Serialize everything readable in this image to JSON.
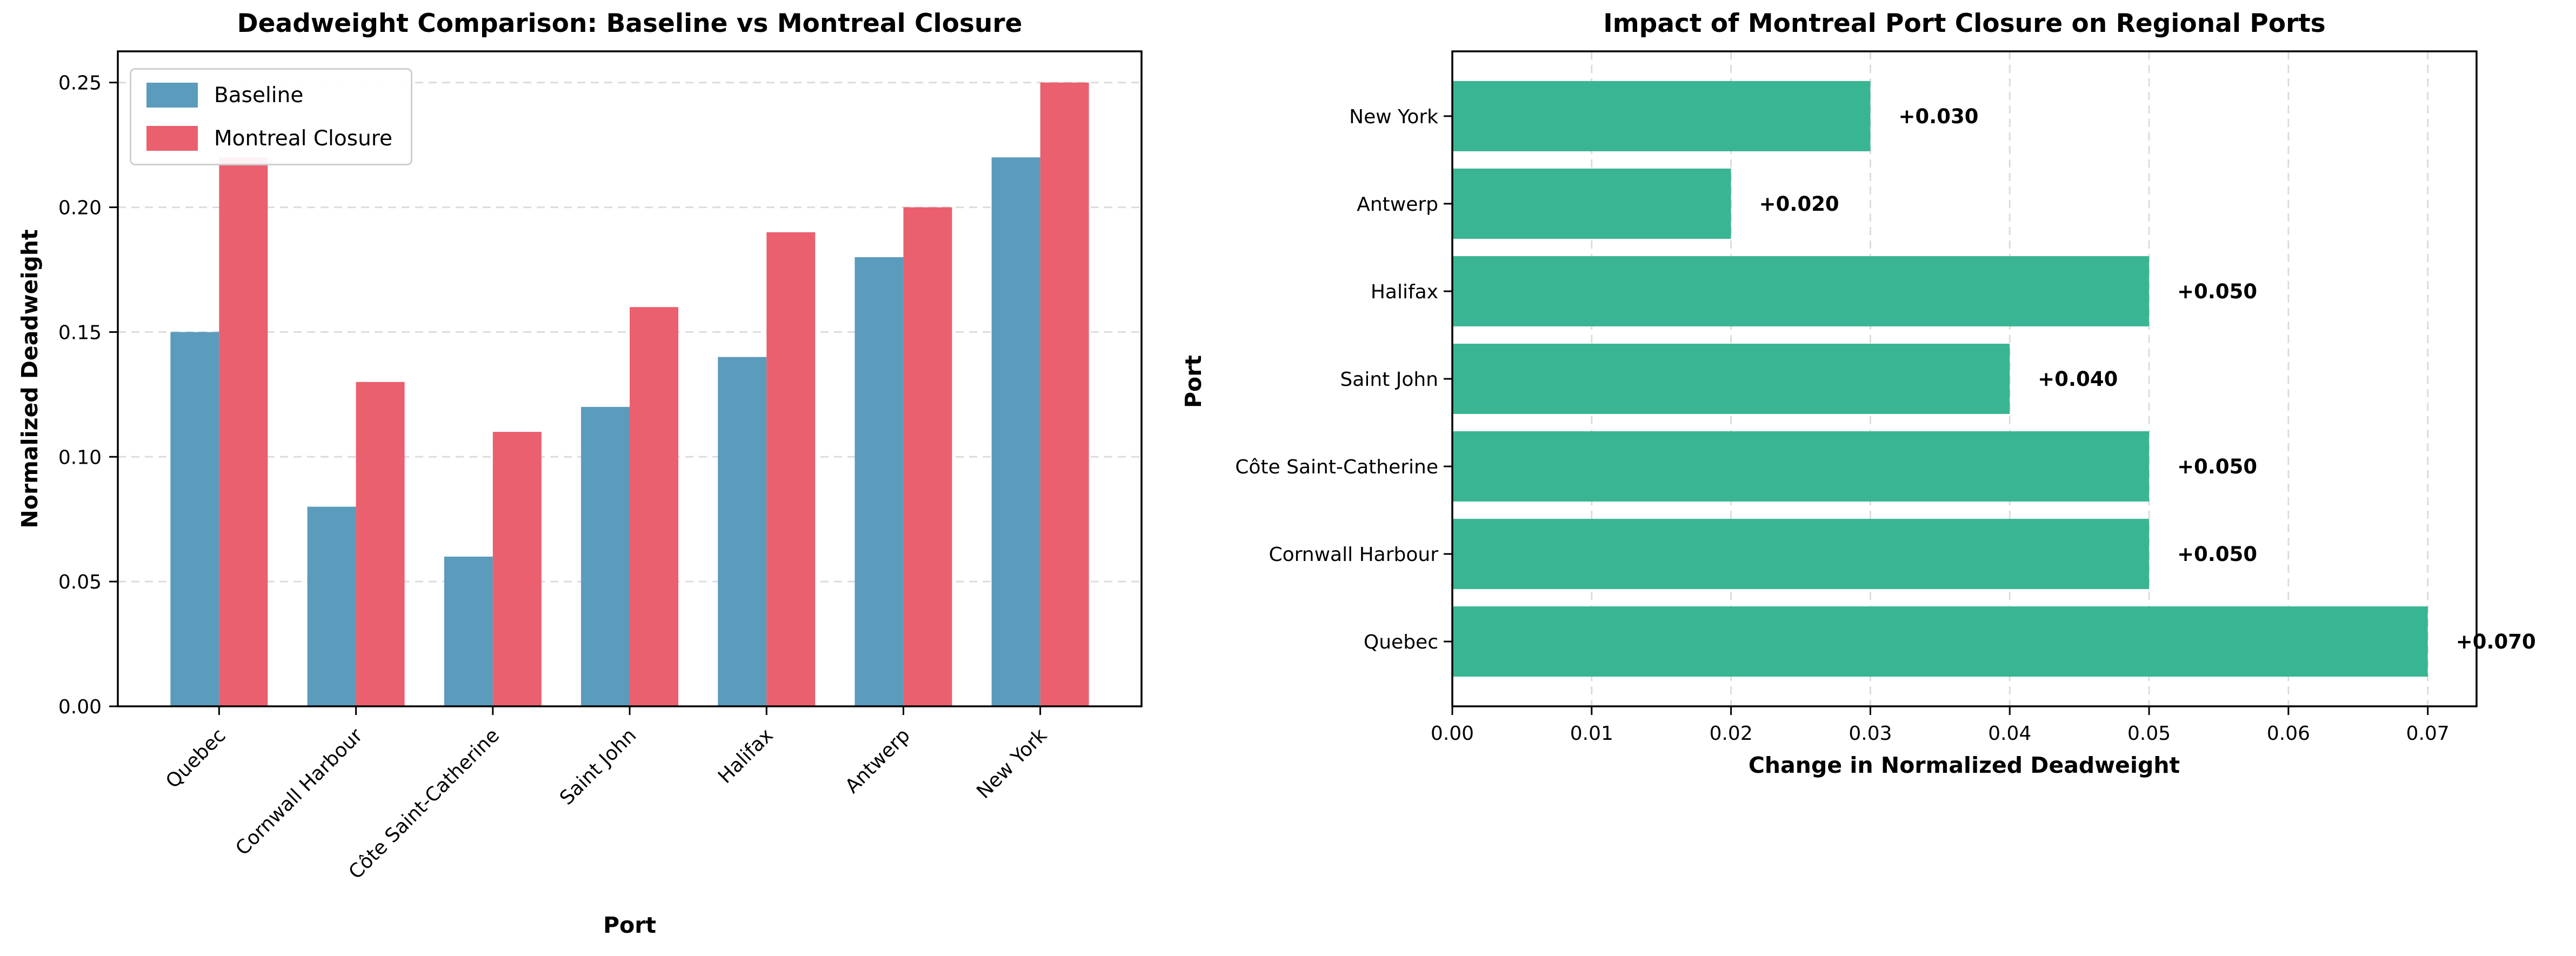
{
  "figure_title": "Deadweight comparison figure",
  "palette": {
    "baseline_blue": "#5B9BBC",
    "closure_red": "#EA606E",
    "impact_green": "#3AB593",
    "grid_gray": "#dcdcdc",
    "spine_black": "#000000",
    "legend_border": "#cfcfcf"
  },
  "chart_data": [
    {
      "type": "bar",
      "title": "Deadweight Comparison: Baseline vs Montreal Closure",
      "xlabel": "Port",
      "ylabel": "Normalized Deadweight",
      "categories": [
        "Quebec",
        "Cornwall Harbour",
        "Côte Saint-Catherine",
        "Saint John",
        "Halifax",
        "Antwerp",
        "New York"
      ],
      "series": [
        {
          "name": "Baseline",
          "color": "#5B9BBC",
          "values": [
            0.15,
            0.08,
            0.06,
            0.12,
            0.14,
            0.18,
            0.22
          ]
        },
        {
          "name": "Montreal Closure",
          "color": "#EA606E",
          "values": [
            0.22,
            0.13,
            0.11,
            0.16,
            0.19,
            0.2,
            0.25
          ]
        }
      ],
      "ylim": [
        0,
        0.2625
      ],
      "yticks": [
        0,
        0.05,
        0.1,
        0.15,
        0.2,
        0.25
      ],
      "xtick_rotation": 45,
      "grid": "horizontal-dashed",
      "legend_position": "upper-left"
    },
    {
      "type": "bar-horizontal",
      "title": "Impact of Montreal Port Closure on Regional Ports",
      "xlabel": "Change in Normalized Deadweight",
      "ylabel": "Port",
      "categories": [
        "New York",
        "Antwerp",
        "Halifax",
        "Saint John",
        "Côte Saint-Catherine",
        "Cornwall Harbour",
        "Quebec"
      ],
      "values": [
        0.03,
        0.02,
        0.05,
        0.04,
        0.05,
        0.05,
        0.07
      ],
      "bar_labels": [
        "+0.030",
        "+0.020",
        "+0.050",
        "+0.040",
        "+0.050",
        "+0.050",
        "+0.070"
      ],
      "color": "#3AB593",
      "xlim": [
        0,
        0.0735
      ],
      "xticks": [
        0,
        0.01,
        0.02,
        0.03,
        0.04,
        0.05,
        0.06,
        0.07
      ],
      "grid": "vertical-dashed",
      "legend_position": "none"
    }
  ]
}
